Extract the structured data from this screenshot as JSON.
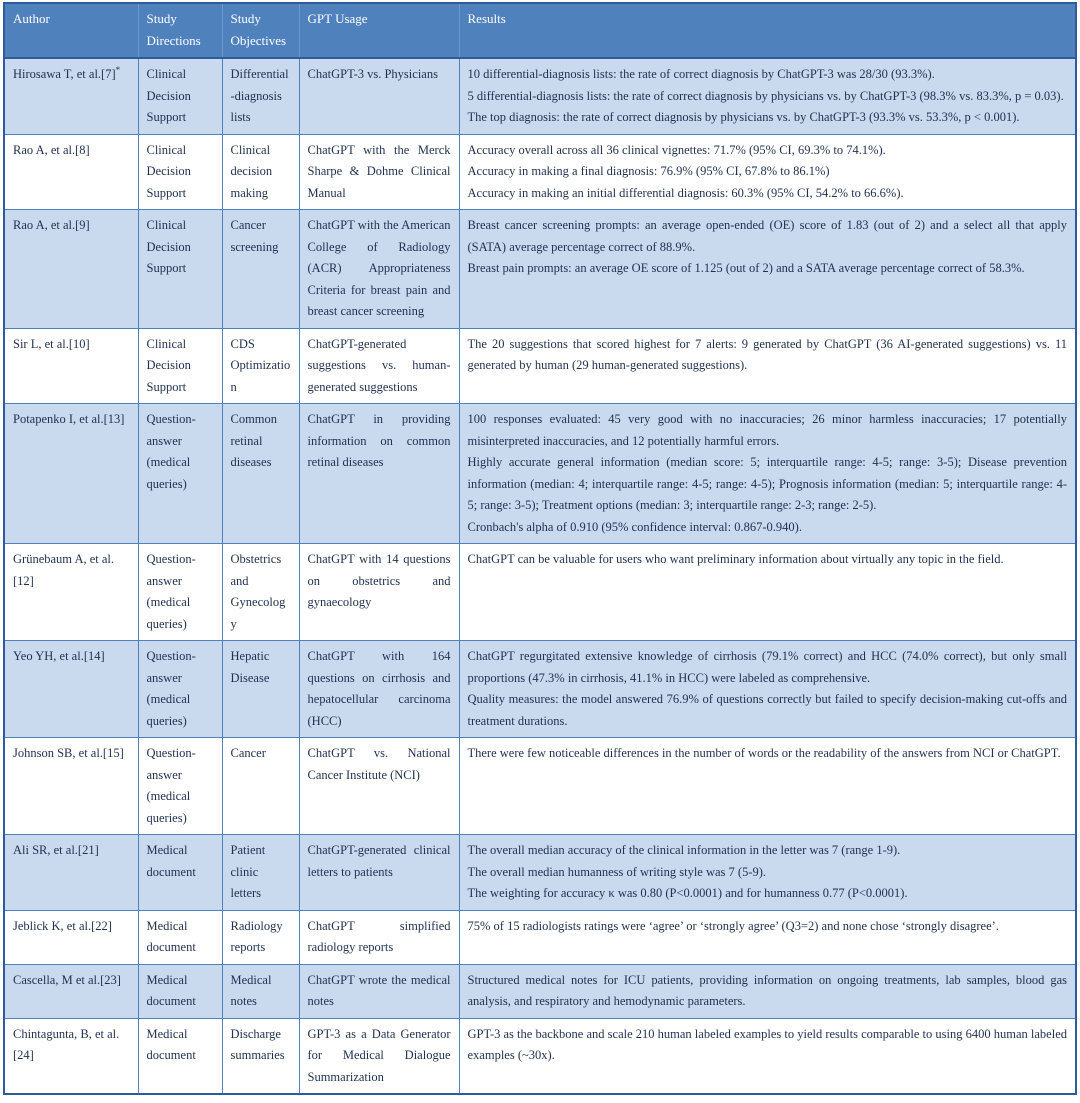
{
  "colors": {
    "header_bg": "#4f81bd",
    "shaded_row_bg": "#c9d9ee",
    "border": "#4f81bd",
    "outer_border": "#2d5b9b",
    "header_text": "#ffffff",
    "body_text": "#1f3050"
  },
  "table": {
    "columns": [
      "Author",
      "Study Directions",
      "Study Objectives",
      "GPT Usage",
      "Results"
    ],
    "rows": [
      {
        "author": "Hirosawa T, et al.[7]",
        "author_sup": "*",
        "direction": "Clinical Decision Support",
        "objective": "Differential-diagnosis lists",
        "usage": "ChatGPT-3 vs. Physicians",
        "results": [
          "10 differential-diagnosis lists: the rate of correct diagnosis by ChatGPT-3 was 28/30 (93.3%).",
          "5 differential-diagnosis lists: the rate of correct diagnosis by physicians vs. by ChatGPT-3 (98.3% vs. 83.3%, p = 0.03).",
          "The top diagnosis: the rate of correct diagnosis by physicians vs. by ChatGPT-3 (93.3% vs. 53.3%, p < 0.001)."
        ]
      },
      {
        "author": "Rao A, et al.[8]",
        "direction": "Clinical Decision Support",
        "objective": "Clinical decision making",
        "usage": "ChatGPT with the Merck Sharpe & Dohme Clinical Manual",
        "results": [
          "Accuracy overall across all 36 clinical vignettes: 71.7% (95% CI, 69.3% to 74.1%).",
          "Accuracy in making a final diagnosis: 76.9% (95% CI, 67.8% to 86.1%)",
          "Accuracy in making an initial differential diagnosis: 60.3% (95% CI, 54.2% to 66.6%)."
        ]
      },
      {
        "author": "Rao A, et al.[9]",
        "direction": "Clinical Decision Support",
        "objective": "Cancer screening",
        "usage": "ChatGPT with the American College of Radiology (ACR) Appropriateness Criteria for breast pain and breast cancer screening",
        "results": [
          "Breast cancer screening prompts: an average open-ended (OE) score of 1.83 (out of 2) and a select all that apply (SATA) average percentage correct of 88.9%.",
          "Breast pain prompts: an average OE score of 1.125 (out of 2) and a SATA average percentage correct of 58.3%."
        ]
      },
      {
        "author": "Sir L, et al.[10]",
        "direction": "Clinical Decision Support",
        "objective": "CDS Optimization",
        "usage": "ChatGPT-generated suggestions vs. human-generated suggestions",
        "results": [
          "The 20 suggestions that scored highest for 7 alerts: 9 generated by ChatGPT (36 AI-generated suggestions) vs. 11 generated by human (29 human-generated suggestions)."
        ]
      },
      {
        "author": "Potapenko I, et al.[13]",
        "direction": "Question-answer (medical queries)",
        "objective": "Common retinal diseases",
        "usage": "ChatGPT in providing information on common retinal diseases",
        "results": [
          "100 responses evaluated: 45 very good with no inaccuracies; 26 minor harmless inaccuracies; 17 potentially misinterpreted inaccuracies, and 12 potentially harmful errors.",
          "Highly accurate general information (median score: 5; interquartile range: 4-5; range: 3-5); Disease prevention information (median: 4; interquartile range: 4-5; range: 4-5); Prognosis information (median: 5; interquartile range: 4-5; range: 3-5); Treatment options (median: 3; interquartile range: 2-3; range: 2-5).",
          "Cronbach's alpha of 0.910 (95% confidence interval: 0.867-0.940)."
        ]
      },
      {
        "author": "Grünebaum A, et al.[12]",
        "direction": "Question-answer (medical queries)",
        "objective": "Obstetrics and Gynecology",
        "usage": "ChatGPT with 14 questions on obstetrics and gynaecology",
        "results": [
          "ChatGPT can be valuable for users who want preliminary information about virtually any topic in the field."
        ]
      },
      {
        "author": "Yeo YH, et al.[14]",
        "direction": "Question-answer (medical queries)",
        "objective": "Hepatic Disease",
        "usage": "ChatGPT with 164 questions on cirrhosis and hepatocellular carcinoma (HCC)",
        "results": [
          "ChatGPT regurgitated extensive knowledge of cirrhosis (79.1% correct) and HCC (74.0% correct), but only small proportions (47.3% in cirrhosis, 41.1% in HCC) were labeled as comprehensive.",
          "Quality measures: the model answered 76.9% of questions correctly but failed to specify decision-making cut-offs and treatment durations."
        ]
      },
      {
        "author": "Johnson SB, et al.[15]",
        "direction": "Question-answer (medical queries)",
        "objective": "Cancer",
        "usage": "ChatGPT vs. National Cancer Institute (NCI)",
        "results": [
          "There were few noticeable differences in the number of words or the readability of the answers from NCI or ChatGPT."
        ]
      },
      {
        "author": "Ali SR, et al.[21]",
        "direction": "Medical document",
        "objective": "Patient clinic letters",
        "usage": "ChatGPT-generated clinical letters to patients",
        "results": [
          "The overall median accuracy of the clinical information in the letter was 7 (range 1-9).",
          "The overall median humanness of writing style was 7 (5-9).",
          "The weighting for accuracy κ was 0.80 (P<0.0001) and for humanness 0.77 (P<0.0001)."
        ]
      },
      {
        "author": "Jeblick K, et al.[22]",
        "direction": "Medical document",
        "objective": "Radiology reports",
        "usage": "ChatGPT simplified radiology reports",
        "results": [
          "75% of 15 radiologists ratings were ‘agree’ or ‘strongly agree’ (Q3=2) and none chose ‘strongly disagree’."
        ]
      },
      {
        "author": "Cascella, M et al.[23]",
        "direction": "Medical document",
        "objective": "Medical notes",
        "usage": "ChatGPT wrote the medical notes",
        "results": [
          "Structured medical notes for ICU patients, providing information on ongoing treatments, lab samples, blood gas analysis, and respiratory and hemodynamic parameters."
        ]
      },
      {
        "author": "Chintagunta, B, et al.[24]",
        "direction": "Medical document",
        "objective": "Discharge summaries",
        "usage": "GPT-3 as a Data Generator for Medical Dialogue Summarization",
        "results": [
          "GPT-3 as the backbone and scale 210 human labeled examples to yield results comparable to using 6400 human labeled examples (~30x)."
        ]
      }
    ]
  }
}
